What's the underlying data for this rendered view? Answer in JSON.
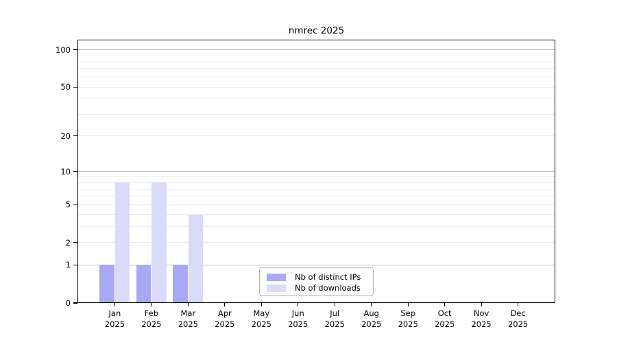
{
  "chart_data": {
    "type": "bar",
    "title": "nmrec 2025",
    "categories": [
      "Jan",
      "Feb",
      "Mar",
      "Apr",
      "May",
      "Jun",
      "Jul",
      "Aug",
      "Sep",
      "Oct",
      "Nov",
      "Dec"
    ],
    "category_year": "2025",
    "series": [
      {
        "name": "Nb of distinct IPs",
        "color": "#a8a8f6",
        "values": [
          1,
          1,
          1,
          0,
          0,
          0,
          0,
          0,
          0,
          0,
          0,
          0
        ]
      },
      {
        "name": "Nb of downloads",
        "color": "#dadaf9",
        "values": [
          8,
          8,
          4,
          0,
          0,
          0,
          0,
          0,
          0,
          0,
          0,
          0
        ]
      }
    ],
    "yscale": "log10(1+value)",
    "ylim": [
      0,
      120
    ],
    "yticks": [
      0,
      1,
      2,
      5,
      10,
      20,
      50,
      100
    ],
    "grid_major": [
      1,
      10,
      100
    ],
    "grid_minor": [
      2,
      3,
      4,
      5,
      6,
      7,
      8,
      9,
      20,
      30,
      40,
      50,
      60,
      70,
      80,
      90
    ],
    "grid": true,
    "legend_position": "bottom-center-inside"
  },
  "colors": {
    "distinct_ips": "#a8a8f6",
    "downloads": "#dadaf9",
    "grid_major": "#bdbdbd",
    "grid_minor": "#ececec",
    "axis": "#000000",
    "background": "#ffffff"
  }
}
